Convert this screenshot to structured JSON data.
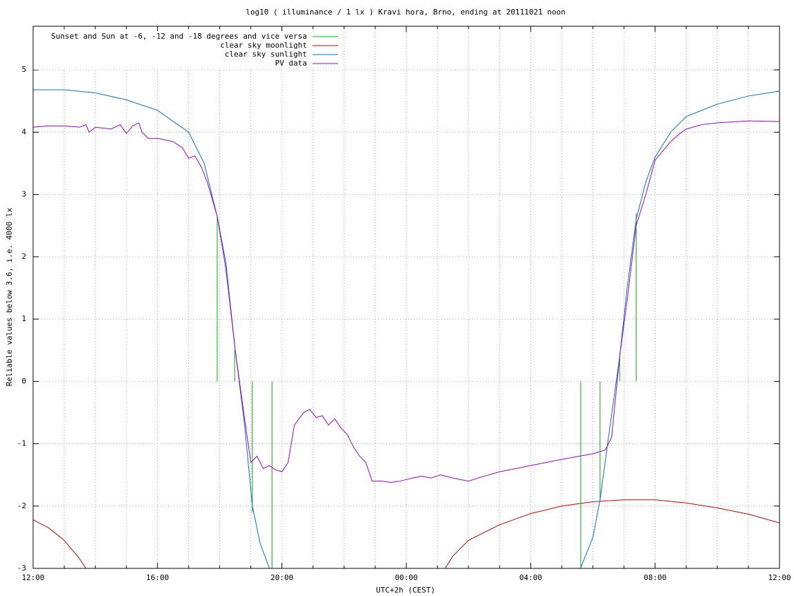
{
  "chart_data": {
    "type": "line",
    "title": "log10 ( illuminance / 1 lx ) Kravi hora, Brno, ending at 20111021 noon",
    "x_label": "UTC+2h (CEST)",
    "y_label": "Reliable values below 3.6, i.e. 4000 lx",
    "xlim": [
      0,
      24
    ],
    "xticks": [
      {
        "value": 0,
        "label": "12:00"
      },
      {
        "value": 4,
        "label": "16:00"
      },
      {
        "value": 8,
        "label": "20:00"
      },
      {
        "value": 12,
        "label": "00:00"
      },
      {
        "value": 16,
        "label": "04:00"
      },
      {
        "value": 20,
        "label": "08:00"
      },
      {
        "value": 24,
        "label": "12:00"
      }
    ],
    "x_minor_ticks": [
      1,
      2,
      3,
      5,
      6,
      7,
      9,
      10,
      11,
      13,
      14,
      15,
      17,
      18,
      19,
      21,
      22,
      23
    ],
    "ylim": [
      -3,
      5.7
    ],
    "yticks": [
      -3,
      -2,
      -1,
      0,
      1,
      2,
      3,
      4,
      5
    ],
    "grid": true,
    "legend": "top-left",
    "series": [
      {
        "name": "Sunset and Sun at -6, -12 and -18 degrees and vice versa",
        "color": "#00b000",
        "style": "impulses",
        "x": [
          5.92,
          6.48,
          7.05,
          7.68,
          17.61,
          18.23,
          18.86,
          19.39
        ],
        "values": [
          2.65,
          0.5,
          -2.1,
          -3,
          -3,
          -1.9,
          0.4,
          2.7
        ]
      },
      {
        "name": "clear sky moonlight",
        "color": "#d00000",
        "style": "line",
        "x": [
          0,
          0.5,
          1,
          1.5,
          1.7,
          null,
          13.25,
          13.5,
          14,
          15,
          16,
          17,
          18,
          19,
          20,
          21,
          22,
          23,
          24
        ],
        "values": [
          -2.22,
          -2.35,
          -2.55,
          -2.85,
          -3,
          null,
          -3,
          -2.8,
          -2.55,
          -2.3,
          -2.12,
          -2.0,
          -1.93,
          -1.9,
          -1.9,
          -1.95,
          -2.03,
          -2.13,
          -2.27
        ]
      },
      {
        "name": "clear sky sunlight",
        "color": "#0070d0",
        "style": "line",
        "x": [
          0,
          1,
          2,
          3,
          4,
          5,
          5.5,
          5.92,
          6.2,
          6.5,
          6.8,
          7.05,
          7.3,
          7.6,
          null,
          17.6,
          18.0,
          18.23,
          18.5,
          18.86,
          19.1,
          19.39,
          19.7,
          20,
          20.5,
          21,
          22,
          23,
          24
        ],
        "values": [
          4.68,
          4.68,
          4.63,
          4.52,
          4.35,
          4.0,
          3.5,
          2.65,
          1.9,
          0.5,
          -0.7,
          -2.0,
          -2.6,
          -3,
          null,
          -3,
          -2.5,
          -1.9,
          -0.9,
          0.4,
          1.5,
          2.6,
          3.2,
          3.6,
          4.0,
          4.25,
          4.45,
          4.58,
          4.66
        ]
      },
      {
        "name": "PV data",
        "color": "#a000d0",
        "style": "line",
        "x": [
          0,
          0.5,
          1,
          1.5,
          1.7,
          1.8,
          2,
          2.5,
          2.8,
          3.0,
          3.2,
          3.4,
          3.5,
          3.7,
          4.0,
          4.5,
          4.8,
          5.0,
          5.2,
          5.4,
          5.6,
          5.92,
          6.2,
          6.5,
          6.8,
          7.0,
          7.1,
          7.2,
          7.4,
          7.6,
          7.8,
          8.0,
          8.2,
          8.4,
          8.7,
          8.9,
          9.1,
          9.3,
          9.5,
          9.7,
          9.9,
          10.1,
          10.3,
          10.5,
          10.7,
          10.9,
          11.2,
          11.5,
          11.8,
          12.2,
          12.5,
          12.8,
          13.1,
          13.5,
          14,
          14.3,
          15,
          16,
          17,
          18,
          18.4,
          18.6,
          18.86,
          19.1,
          19.39,
          19.7,
          20.0,
          20.5,
          20.8,
          21.0,
          21.5,
          22,
          23,
          24
        ],
        "values": [
          4.08,
          4.1,
          4.1,
          4.08,
          4.12,
          4.0,
          4.08,
          4.05,
          4.12,
          3.98,
          4.1,
          4.15,
          4.0,
          3.9,
          3.9,
          3.85,
          3.75,
          3.58,
          3.62,
          3.45,
          3.2,
          2.65,
          1.8,
          0.5,
          -0.6,
          -1.3,
          -1.25,
          -1.2,
          -1.4,
          -1.35,
          -1.42,
          -1.45,
          -1.3,
          -0.7,
          -0.5,
          -0.45,
          -0.58,
          -0.55,
          -0.7,
          -0.6,
          -0.75,
          -0.85,
          -1.05,
          -1.2,
          -1.3,
          -1.6,
          -1.6,
          -1.62,
          -1.6,
          -1.55,
          -1.52,
          -1.55,
          -1.5,
          -1.55,
          -1.6,
          -1.55,
          -1.45,
          -1.35,
          -1.25,
          -1.16,
          -1.1,
          -0.9,
          0.4,
          1.3,
          2.5,
          3.0,
          3.55,
          3.85,
          3.98,
          4.05,
          4.12,
          4.15,
          4.18,
          4.17
        ]
      }
    ]
  }
}
